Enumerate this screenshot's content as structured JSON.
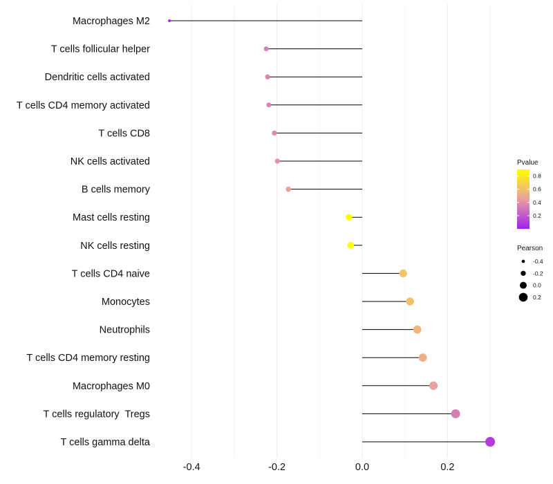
{
  "chart_data": {
    "type": "lollipop",
    "title": "",
    "xlabel": "",
    "ylabel": "",
    "xlim": [
      -0.45,
      0.3
    ],
    "x_ticks": [
      -0.4,
      -0.2,
      0.0,
      0.2
    ],
    "x_tick_labels": [
      "-0.4",
      "-0.2",
      "0.0",
      "0.2"
    ],
    "grid": true,
    "baseline": 0.0,
    "categories": [
      "Macrophages M2",
      "T cells follicular helper",
      "Dendritic cells activated",
      "T cells CD4 memory activated",
      "T cells CD8",
      "NK cells activated",
      "B cells memory",
      "Mast cells resting",
      "NK cells resting",
      "T cells CD4 naive",
      "Monocytes",
      "Neutrophils",
      "T cells CD4 memory resting",
      "Macrophages M0",
      "T cells regulatory  Tregs",
      "T cells gamma delta"
    ],
    "pearson": [
      -0.452,
      -0.225,
      -0.222,
      -0.219,
      -0.206,
      -0.199,
      -0.173,
      -0.031,
      -0.027,
      0.096,
      0.112,
      0.129,
      0.142,
      0.167,
      0.219,
      0.3
    ],
    "pvalue": [
      0.02,
      0.34,
      0.35,
      0.36,
      0.38,
      0.4,
      0.47,
      0.9,
      0.91,
      0.62,
      0.6,
      0.55,
      0.52,
      0.45,
      0.33,
      0.1
    ],
    "color_legend": {
      "title": "Pvalue",
      "placement": "right",
      "range": [
        0.0,
        0.9
      ],
      "ticks": [
        0.8,
        0.6,
        0.4,
        0.2
      ],
      "tick_labels": [
        "0.8",
        "0.6",
        "0.4",
        "0.2"
      ],
      "low_color": "#a020f0",
      "mid_color": "#e8a0a0",
      "high_color": "#ffff00"
    },
    "size_legend": {
      "title": "Pearson",
      "placement": "right",
      "values": [
        -0.4,
        -0.2,
        0.0,
        0.2
      ],
      "labels": [
        "-0.4",
        "-0.2",
        "0.0",
        "0.2"
      ],
      "color": "#000000"
    },
    "stem_color": "#000000"
  }
}
